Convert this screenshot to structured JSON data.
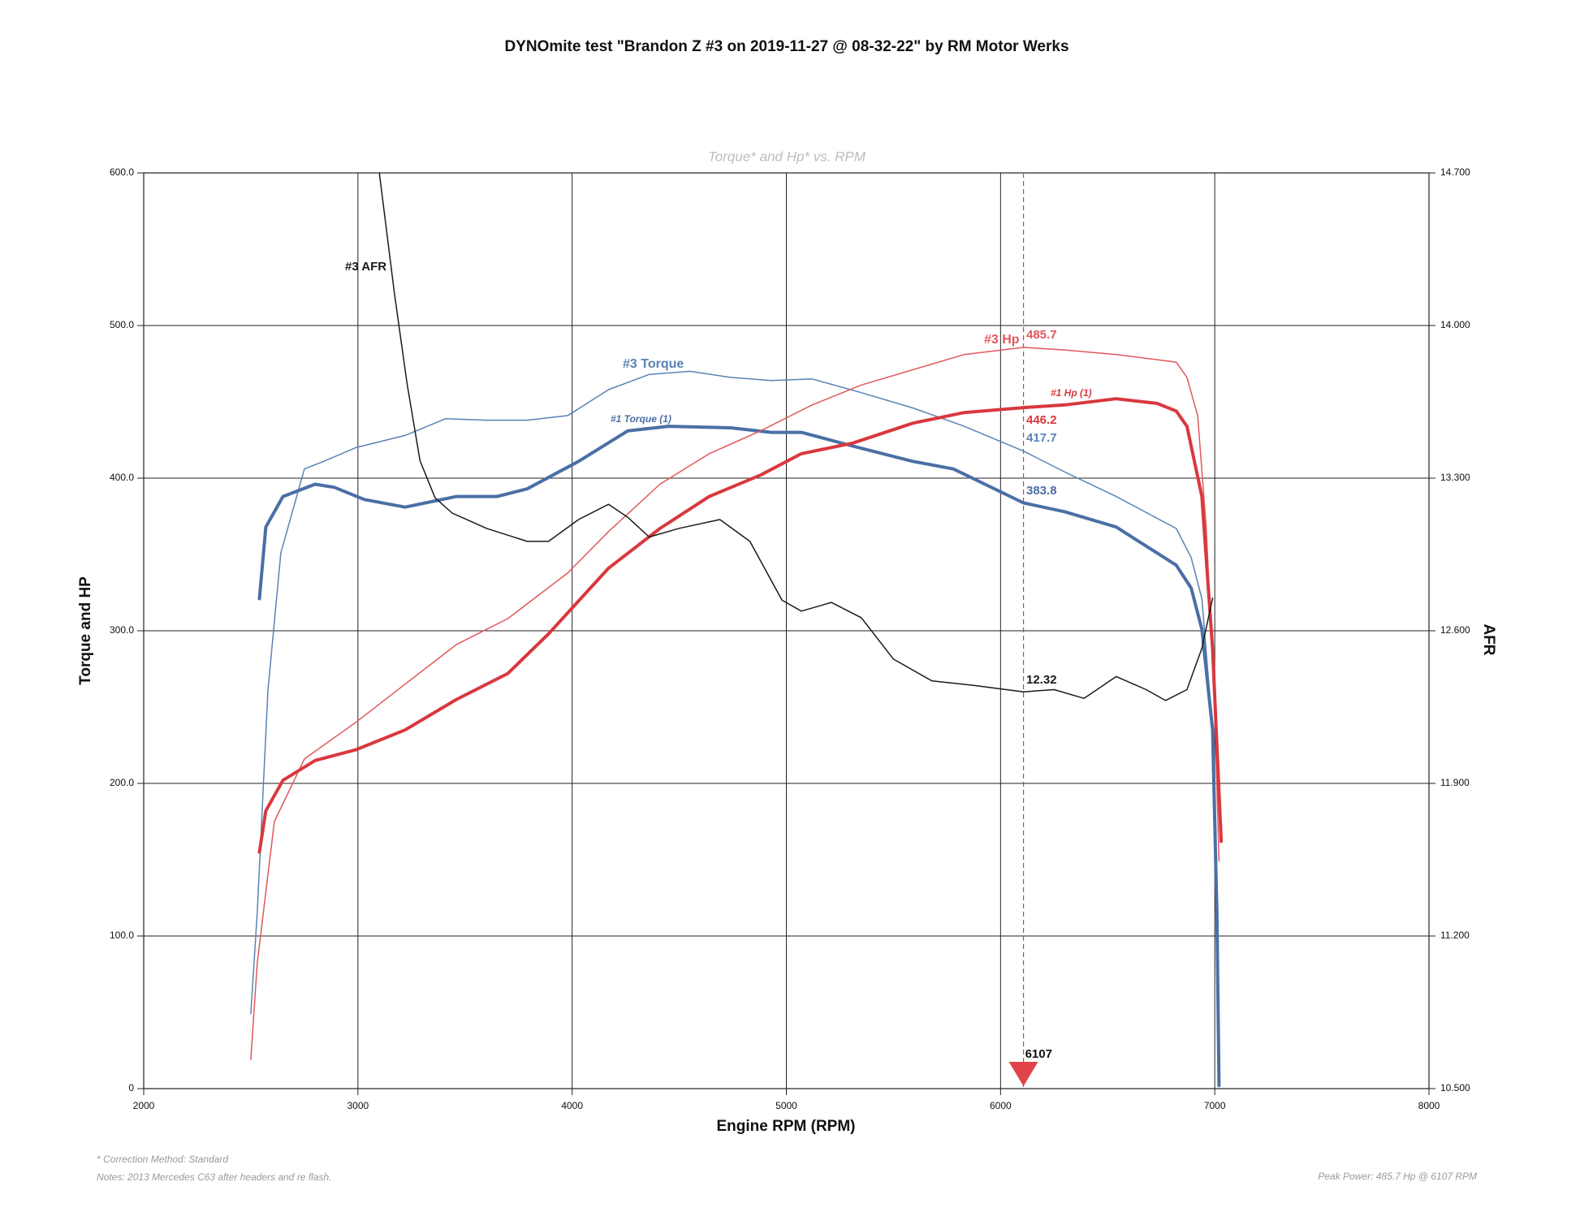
{
  "chart_data": {
    "type": "line",
    "title": "DYNOmite test \"Brandon Z #3 on 2019-11-27 @ 08-32-22\" by RM Motor Werks",
    "subtitle": "Torque* and Hp* vs. RPM",
    "xlabel": "Engine RPM (RPM)",
    "ylabel": "Torque and HP",
    "y2label": "AFR",
    "xlim": [
      2000,
      8000
    ],
    "xticks": [
      2000,
      3000,
      4000,
      5000,
      6000,
      7000,
      8000
    ],
    "ylim": [
      0,
      600
    ],
    "yticks": [
      0,
      {
        "value": 100,
        "label": "100.0"
      },
      {
        "value": 200,
        "label": "200.0"
      },
      {
        "value": 300,
        "label": "300.0"
      },
      {
        "value": 400,
        "label": "400.0"
      },
      {
        "value": 500,
        "label": "500.0"
      },
      {
        "value": 600,
        "label": "600.0"
      }
    ],
    "y2lim": [
      10.5,
      14.7
    ],
    "y2ticks": [
      {
        "value": 10.5,
        "label": "10.500"
      },
      {
        "value": 11.2,
        "label": "11.200"
      },
      {
        "value": 11.9,
        "label": "11.900"
      },
      {
        "value": 12.6,
        "label": "12.600"
      },
      {
        "value": 13.3,
        "label": "13.300"
      },
      {
        "value": 14.0,
        "label": "14.000"
      },
      {
        "value": 14.7,
        "label": "14.700"
      }
    ],
    "grid": true,
    "series": [
      {
        "name": "#3 Torque",
        "color": "#5a82b6",
        "width": 1.5,
        "x": [
          2500,
          2530,
          2580,
          2640,
          2750,
          2840,
          2990,
          3220,
          3410,
          3600,
          3790,
          3980,
          4170,
          4360,
          4550,
          4740,
          4930,
          5120,
          5350,
          5590,
          5830,
          6107,
          6300,
          6540,
          6820,
          6890,
          6940,
          6990
        ],
        "values": [
          49,
          115,
          261,
          351,
          406,
          411,
          420,
          428,
          439,
          438,
          438,
          441,
          458,
          468,
          470,
          466,
          464,
          465,
          456,
          446,
          434,
          417.7,
          404,
          388,
          367,
          348,
          321,
          235
        ]
      },
      {
        "name": "#1 Torque (1)",
        "color": "#4a6fa5",
        "width": 4,
        "x": [
          2540,
          2570,
          2650,
          2800,
          2890,
          3030,
          3220,
          3460,
          3650,
          3790,
          4030,
          4260,
          4450,
          4740,
          4930,
          5070,
          5310,
          5590,
          5780,
          6107,
          6300,
          6540,
          6730,
          6820,
          6890,
          6940,
          6990,
          7010,
          7020
        ],
        "values": [
          321,
          368,
          388,
          396,
          394,
          386,
          381,
          388,
          388,
          393,
          411,
          431,
          434,
          433,
          430,
          430,
          421,
          411,
          406,
          383.8,
          378,
          368,
          351,
          343,
          328,
          301,
          235,
          115,
          2
        ]
      },
      {
        "name": "#3 Hp",
        "color": "#e0585c",
        "width": 1.5,
        "x": [
          2500,
          2530,
          2610,
          2750,
          2990,
          3220,
          3460,
          3700,
          3980,
          4170,
          4410,
          4640,
          4880,
          5120,
          5350,
          5590,
          5830,
          6107,
          6300,
          6540,
          6820,
          6870,
          6920,
          6960,
          7000,
          7020
        ],
        "values": [
          19,
          82,
          175,
          216,
          240,
          265,
          291,
          308,
          338,
          365,
          396,
          416,
          431,
          448,
          461,
          471,
          481,
          485.7,
          484,
          481,
          476,
          466,
          441,
          368,
          248,
          149
        ]
      },
      {
        "name": "#1 Hp (1)",
        "color": "#d9383e",
        "width": 4,
        "x": [
          2540,
          2570,
          2650,
          2800,
          2990,
          3220,
          3460,
          3700,
          3890,
          4170,
          4410,
          4640,
          4880,
          5070,
          5310,
          5590,
          5830,
          6107,
          6300,
          6540,
          6730,
          6820,
          6870,
          6940,
          6990,
          7030
        ],
        "values": [
          155,
          182,
          202,
          215,
          222,
          235,
          255,
          272,
          298,
          341,
          367,
          388,
          402,
          416,
          423,
          436,
          443,
          446.2,
          448,
          452,
          449,
          444,
          434,
          388,
          288,
          162
        ]
      },
      {
        "name": "#3 AFR",
        "color": "#1a1a1a",
        "width": 1.5,
        "axis": "y2",
        "x": [
          3100,
          3170,
          3230,
          3290,
          3360,
          3440,
          3600,
          3790,
          3890,
          4030,
          4170,
          4260,
          4360,
          4500,
          4690,
          4830,
          4980,
          5070,
          5210,
          5350,
          5500,
          5680,
          5870,
          6107,
          6250,
          6390,
          6540,
          6680,
          6770,
          6870,
          6940,
          6990
        ],
        "values": [
          14.7,
          14.15,
          13.73,
          13.38,
          13.21,
          13.14,
          13.07,
          13.01,
          13.01,
          13.11,
          13.18,
          13.12,
          13.03,
          13.07,
          13.11,
          13.01,
          12.74,
          12.69,
          12.73,
          12.66,
          12.47,
          12.37,
          12.35,
          12.32,
          12.33,
          12.29,
          12.39,
          12.33,
          12.28,
          12.33,
          12.52,
          12.75
        ]
      }
    ],
    "cursor": {
      "x": 6107,
      "readouts": [
        417.7,
        383.8,
        485.7,
        446.2,
        12.32
      ]
    },
    "footnote": "* Correction Method: Standard",
    "notes": "Notes: 2013 Mercedes C63 after headers and re flash.",
    "peak_power": "Peak Power: 485.7 Hp @ 6107 RPM"
  }
}
